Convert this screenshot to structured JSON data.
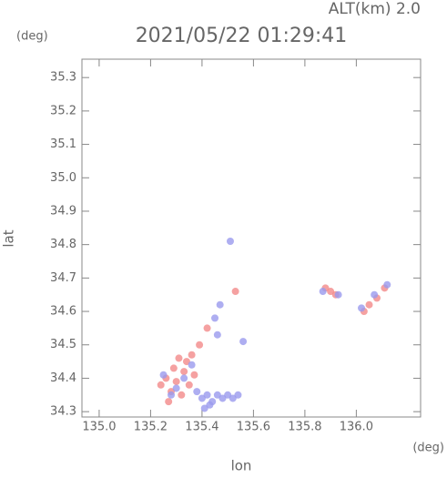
{
  "chart_data": {
    "type": "scatter",
    "title": "2021/05/22 01:29:41",
    "altitude_label": "ALT(km) 2.0",
    "y_unit": "(deg)",
    "x_unit": "(deg)",
    "x_label": "lon",
    "y_label": "lat",
    "xlim": [
      134.933,
      136.25
    ],
    "ylim": [
      34.284,
      35.355
    ],
    "xticks": [
      {
        "value": 135,
        "label": "135.0"
      },
      135.2,
      135.4,
      135.6,
      135.8,
      {
        "value": 136,
        "label": "136.0"
      }
    ],
    "yticks": [
      34.3,
      34.4,
      34.5,
      34.6,
      34.7,
      34.8,
      34.9,
      {
        "value": 35,
        "label": "35.0"
      },
      35.1,
      35.2,
      35.3
    ],
    "series": [
      {
        "color": "#f28a8a",
        "x": [
          135.26,
          135.29,
          135.31,
          135.33,
          135.35,
          135.28,
          135.3,
          135.34,
          135.37,
          135.32,
          135.24,
          135.27,
          135.36,
          135.53,
          135.9,
          135.92,
          135.88,
          136.03,
          136.05,
          136.11,
          136.08,
          135.39,
          135.42
        ],
        "values": [
          34.4,
          34.43,
          34.46,
          34.42,
          34.38,
          34.36,
          34.39,
          34.45,
          34.41,
          34.35,
          34.38,
          34.33,
          34.47,
          34.66,
          34.66,
          34.65,
          34.67,
          34.6,
          34.62,
          34.67,
          34.64,
          34.5,
          34.55
        ]
      },
      {
        "color": "#9a9aee",
        "x": [
          135.4,
          135.42,
          135.44,
          135.46,
          135.48,
          135.5,
          135.52,
          135.54,
          135.41,
          135.43,
          135.38,
          135.36,
          135.33,
          135.3,
          135.45,
          135.47,
          135.46,
          135.51,
          135.56,
          135.87,
          135.93,
          136.02,
          136.07,
          136.12,
          135.25,
          135.28
        ],
        "values": [
          34.34,
          34.35,
          34.33,
          34.35,
          34.34,
          34.35,
          34.34,
          34.35,
          34.31,
          34.32,
          34.36,
          34.44,
          34.4,
          34.37,
          34.58,
          34.62,
          34.53,
          34.81,
          34.51,
          34.66,
          34.65,
          34.61,
          34.65,
          34.68,
          34.41,
          34.35
        ]
      }
    ]
  }
}
